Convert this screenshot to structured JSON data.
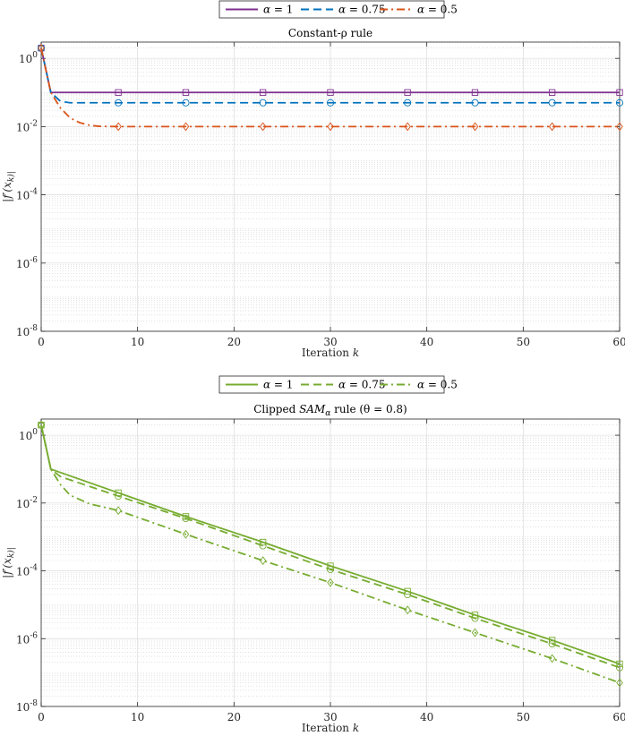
{
  "chart_data": [
    {
      "type": "line",
      "title": "Constant-ρ rule",
      "xlabel": "Iteration k",
      "ylabel": "|f′(x_k)|",
      "xlim": [
        0,
        60
      ],
      "ylim": [
        1e-08,
        3
      ],
      "yscale": "log",
      "xticks": [
        "0",
        "10",
        "20",
        "30",
        "40",
        "50",
        "60"
      ],
      "yticks": [
        "10^0",
        "10^-2",
        "10^-4",
        "10^-6",
        "10^-8"
      ],
      "grid": true,
      "legend_position": "top-center",
      "series": [
        {
          "name": "α = 1",
          "color": "#7E2F8E",
          "dash": "solid",
          "marker": "square",
          "x": [
            0,
            1,
            2,
            3,
            5,
            8,
            15,
            23,
            30,
            38,
            45,
            53,
            60
          ],
          "y": [
            2.0,
            0.1,
            0.1,
            0.1,
            0.1,
            0.1,
            0.1,
            0.1,
            0.1,
            0.1,
            0.1,
            0.1,
            0.1
          ]
        },
        {
          "name": "α = 0.75",
          "color": "#0072BD",
          "dash": "dashed",
          "marker": "circle",
          "x": [
            0,
            1,
            2,
            3,
            5,
            8,
            15,
            23,
            30,
            38,
            45,
            53,
            60
          ],
          "y": [
            2.0,
            0.1,
            0.055,
            0.05,
            0.05,
            0.05,
            0.05,
            0.05,
            0.05,
            0.05,
            0.05,
            0.05,
            0.05
          ]
        },
        {
          "name": "α = 0.5",
          "color": "#D95319",
          "dash": "dashdot",
          "marker": "diamond",
          "x": [
            0,
            1,
            2,
            3,
            4,
            5,
            6,
            8,
            15,
            23,
            30,
            38,
            45,
            53,
            60
          ],
          "y": [
            2.0,
            0.1,
            0.035,
            0.018,
            0.013,
            0.011,
            0.0102,
            0.01,
            0.01,
            0.01,
            0.01,
            0.01,
            0.01,
            0.01,
            0.01
          ]
        }
      ]
    },
    {
      "type": "line",
      "title": "Clipped SAM_α rule (θ = 0.8)",
      "xlabel": "Iteration k",
      "ylabel": "|f′(x_k)|",
      "xlim": [
        0,
        60
      ],
      "ylim": [
        1e-08,
        3
      ],
      "yscale": "log",
      "xticks": [
        "0",
        "10",
        "20",
        "30",
        "40",
        "50",
        "60"
      ],
      "yticks": [
        "10^0",
        "10^-2",
        "10^-4",
        "10^-6",
        "10^-8"
      ],
      "grid": true,
      "legend_position": "top-center",
      "series": [
        {
          "name": "α = 1",
          "color": "#77AC30",
          "dash": "solid",
          "marker": "square",
          "x": [
            0,
            1,
            8,
            15,
            23,
            30,
            38,
            45,
            53,
            60
          ],
          "y": [
            2.0,
            0.1,
            0.02,
            0.004,
            0.0007,
            0.00014,
            2.5e-05,
            5e-06,
            9e-07,
            1.8e-07
          ]
        },
        {
          "name": "α = 0.75",
          "color": "#77AC30",
          "dash": "dashed",
          "marker": "circle",
          "x": [
            0,
            1,
            2,
            8,
            15,
            23,
            30,
            38,
            45,
            53,
            60
          ],
          "y": [
            2.0,
            0.1,
            0.06,
            0.016,
            0.0035,
            0.00055,
            0.00011,
            2e-05,
            4e-06,
            7e-07,
            1.4e-07
          ]
        },
        {
          "name": "α = 0.5",
          "color": "#77AC30",
          "dash": "dashdot",
          "marker": "diamond",
          "x": [
            0,
            1,
            2,
            3,
            5,
            8,
            15,
            23,
            30,
            38,
            45,
            53,
            60
          ],
          "y": [
            2.0,
            0.1,
            0.035,
            0.017,
            0.0095,
            0.006,
            0.0012,
            0.0002,
            4.5e-05,
            7e-06,
            1.5e-06,
            2.6e-07,
            5e-08
          ]
        }
      ]
    }
  ]
}
